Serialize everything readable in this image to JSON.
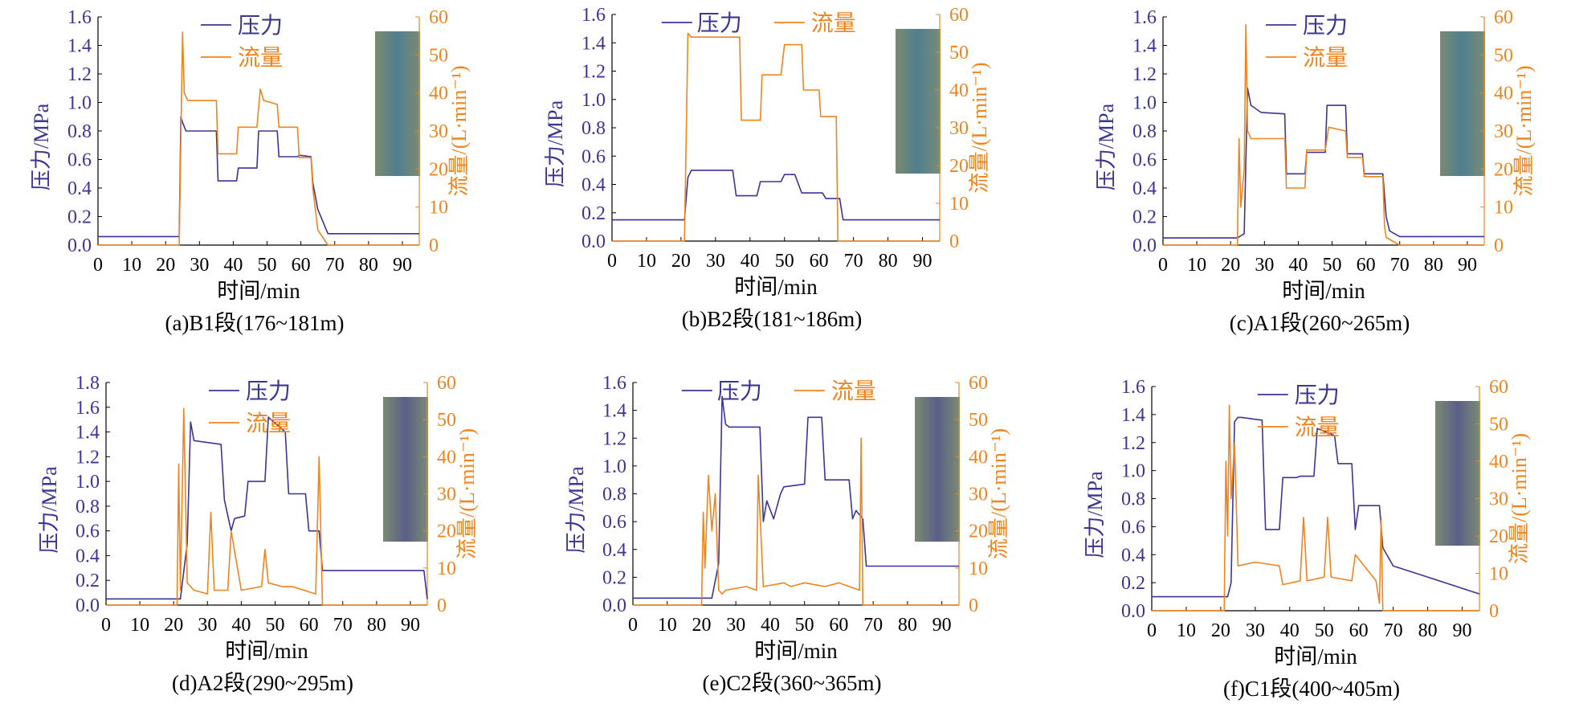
{
  "colors": {
    "pressure": "#3b3596",
    "flow": "#f0841e",
    "axis": "#000000"
  },
  "chart_data": [
    {
      "type": "line",
      "caption": "(a)B1段(176~181m)",
      "xlabel": "时间/min",
      "ylabel": "压力/MPa",
      "y2label": "流量/(L·min⁻¹)",
      "xlim": [
        0,
        95
      ],
      "ylim": [
        0,
        1.6
      ],
      "y2lim": [
        0,
        60
      ],
      "xticks": [
        0,
        10,
        20,
        30,
        40,
        50,
        60,
        70,
        80,
        90
      ],
      "yticks": [
        0.0,
        0.2,
        0.4,
        0.6,
        0.8,
        1.0,
        1.2,
        1.4,
        1.6
      ],
      "y2ticks": [
        0,
        10,
        20,
        30,
        40,
        50,
        60
      ],
      "legend": "top-center",
      "series": [
        {
          "name": "压力",
          "axis": "left",
          "x": [
            0,
            24,
            24.5,
            25,
            26,
            35,
            35.5,
            41,
            41.5,
            47,
            47.5,
            53,
            53.5,
            59,
            59.5,
            63,
            63.5,
            65,
            68,
            95
          ],
          "y": [
            0.06,
            0.06,
            0.9,
            0.86,
            0.8,
            0.8,
            0.45,
            0.45,
            0.54,
            0.54,
            0.8,
            0.8,
            0.62,
            0.62,
            0.63,
            0.62,
            0.44,
            0.25,
            0.08,
            0.08
          ]
        },
        {
          "name": "流量",
          "axis": "right",
          "x": [
            0,
            24,
            25,
            25.5,
            26.5,
            35,
            35.5,
            41,
            41.5,
            47,
            48,
            49,
            53,
            53.5,
            59,
            59.5,
            63,
            63.5,
            65,
            68,
            95
          ],
          "y": [
            0,
            0,
            56,
            40,
            38,
            38,
            24,
            24,
            31,
            31,
            41,
            38,
            37,
            31,
            31,
            23,
            23,
            15,
            4,
            0,
            0
          ]
        }
      ]
    },
    {
      "type": "line",
      "caption": "(b)B2段(181~186m)",
      "xlabel": "时间/min",
      "ylabel": "压力/MPa",
      "y2label": "流量/(L·min⁻¹)",
      "xlim": [
        0,
        95
      ],
      "ylim": [
        0,
        1.6
      ],
      "y2lim": [
        0,
        60
      ],
      "xticks": [
        0,
        10,
        20,
        30,
        40,
        50,
        60,
        70,
        80,
        90
      ],
      "yticks": [
        0.0,
        0.2,
        0.4,
        0.6,
        0.8,
        1.0,
        1.2,
        1.4,
        1.6
      ],
      "y2ticks": [
        0,
        10,
        20,
        30,
        40,
        50,
        60
      ],
      "legend": "top-center",
      "series": [
        {
          "name": "压力",
          "axis": "left",
          "x": [
            0,
            21,
            22,
            23,
            35,
            36,
            42,
            43,
            49,
            50,
            53,
            55,
            61,
            62,
            66,
            67,
            95
          ],
          "y": [
            0.15,
            0.15,
            0.45,
            0.5,
            0.5,
            0.32,
            0.32,
            0.42,
            0.42,
            0.47,
            0.47,
            0.34,
            0.34,
            0.3,
            0.3,
            0.15,
            0.15
          ]
        },
        {
          "name": "流量",
          "axis": "right",
          "x": [
            0,
            21,
            22,
            23,
            37,
            37.5,
            43,
            43.5,
            49,
            50,
            55,
            55.5,
            60,
            60.5,
            65,
            65.5,
            95
          ],
          "y": [
            0,
            0,
            55,
            54,
            54,
            32,
            32,
            44,
            44,
            52,
            52,
            40,
            40,
            33,
            33,
            0,
            0
          ]
        }
      ]
    },
    {
      "type": "line",
      "caption": "(c)A1段(260~265m)",
      "xlabel": "时间/min",
      "ylabel": "压力/MPa",
      "y2label": "流量/(L·min⁻¹)",
      "xlim": [
        0,
        95
      ],
      "ylim": [
        0,
        1.6
      ],
      "y2lim": [
        0,
        60
      ],
      "xticks": [
        0,
        10,
        20,
        30,
        40,
        50,
        60,
        70,
        80,
        90
      ],
      "yticks": [
        0.0,
        0.2,
        0.4,
        0.6,
        0.8,
        1.0,
        1.2,
        1.4,
        1.6
      ],
      "y2ticks": [
        0,
        10,
        20,
        30,
        40,
        50,
        60
      ],
      "legend": "top-center",
      "series": [
        {
          "name": "压力",
          "axis": "left",
          "x": [
            0,
            22,
            24,
            25,
            26,
            29,
            36,
            36.5,
            42,
            42.5,
            48,
            48.5,
            54,
            54.5,
            59,
            59.5,
            65,
            66,
            67,
            70,
            95
          ],
          "y": [
            0.05,
            0.05,
            0.08,
            1.1,
            0.98,
            0.93,
            0.92,
            0.5,
            0.5,
            0.65,
            0.65,
            0.98,
            0.98,
            0.64,
            0.64,
            0.5,
            0.5,
            0.2,
            0.1,
            0.06,
            0.06
          ]
        },
        {
          "name": "流量",
          "axis": "right",
          "x": [
            0,
            22,
            22.5,
            23,
            24,
            24.5,
            25,
            25.5,
            26,
            36,
            36.5,
            42,
            42.5,
            48,
            49,
            54,
            54.5,
            59,
            59.5,
            65,
            65.5,
            66,
            70,
            95
          ],
          "y": [
            0,
            0,
            28,
            10,
            20,
            58,
            30,
            29,
            28,
            28,
            15,
            15,
            25,
            25,
            31,
            30,
            23,
            23,
            18,
            18,
            5,
            2,
            0,
            0
          ]
        }
      ]
    },
    {
      "type": "line",
      "caption": "(d)A2段(290~295m)",
      "xlabel": "时间/min",
      "ylabel": "压力/MPa",
      "y2label": "流量/(L·min⁻¹)",
      "xlim": [
        0,
        95
      ],
      "ylim": [
        0,
        1.8
      ],
      "y2lim": [
        0,
        60
      ],
      "xticks": [
        0,
        10,
        20,
        30,
        40,
        50,
        60,
        70,
        80,
        90
      ],
      "yticks": [
        0.0,
        0.2,
        0.4,
        0.6,
        0.8,
        1.0,
        1.2,
        1.4,
        1.6,
        1.8
      ],
      "y2ticks": [
        0,
        10,
        20,
        30,
        40,
        50,
        60
      ],
      "legend": "top-center",
      "series": [
        {
          "name": "压力",
          "axis": "left",
          "x": [
            0,
            22,
            24,
            25,
            26,
            34,
            35,
            37,
            38,
            41,
            42,
            47,
            48,
            53,
            54,
            59,
            60,
            63,
            64,
            94,
            95
          ],
          "y": [
            0.05,
            0.05,
            0.5,
            1.48,
            1.33,
            1.3,
            0.85,
            0.6,
            0.7,
            0.72,
            1.0,
            1.0,
            1.52,
            1.4,
            0.9,
            0.9,
            0.6,
            0.6,
            0.28,
            0.28,
            0.05
          ]
        },
        {
          "name": "流量",
          "axis": "right",
          "x": [
            0,
            21,
            21.5,
            22,
            23,
            24,
            26,
            30,
            31,
            32,
            36,
            37,
            40,
            46,
            47,
            48,
            52,
            55,
            62,
            63,
            64,
            95
          ],
          "y": [
            0,
            0,
            38,
            4,
            53,
            6,
            4,
            3,
            25,
            4,
            4,
            20,
            4,
            5,
            15,
            6,
            5,
            5,
            3,
            40,
            0,
            0
          ]
        }
      ]
    },
    {
      "type": "line",
      "caption": "(e)C2段(360~365m)",
      "xlabel": "时间/min",
      "ylabel": "压力/MPa",
      "y2label": "流量/(L·min⁻¹)",
      "xlim": [
        0,
        95
      ],
      "ylim": [
        0,
        1.6
      ],
      "y2lim": [
        0,
        60
      ],
      "xticks": [
        0,
        10,
        20,
        30,
        40,
        50,
        60,
        70,
        80,
        90
      ],
      "yticks": [
        0.0,
        0.2,
        0.4,
        0.6,
        0.8,
        1.0,
        1.2,
        1.4,
        1.6
      ],
      "y2ticks": [
        0,
        10,
        20,
        30,
        40,
        50,
        60
      ],
      "legend": "top-center",
      "series": [
        {
          "name": "压力",
          "axis": "left",
          "x": [
            0,
            23,
            25,
            26,
            27,
            28,
            37,
            38,
            39,
            41,
            43,
            44,
            50,
            51,
            55,
            56,
            63,
            64,
            65,
            67,
            68,
            95
          ],
          "y": [
            0.05,
            0.05,
            0.3,
            1.5,
            1.3,
            1.28,
            1.28,
            0.6,
            0.75,
            0.62,
            0.8,
            0.85,
            0.87,
            1.35,
            1.35,
            0.9,
            0.9,
            0.62,
            0.68,
            0.62,
            0.28,
            0.28
          ]
        },
        {
          "name": "流量",
          "axis": "right",
          "x": [
            0,
            20,
            20.5,
            21,
            22,
            23,
            24,
            25,
            26,
            27,
            33,
            36,
            36.5,
            38,
            44,
            46,
            50,
            56,
            60,
            66,
            66.5,
            67,
            95
          ],
          "y": [
            0,
            0,
            25,
            10,
            35,
            20,
            30,
            4,
            3,
            4,
            5,
            4,
            35,
            5,
            6,
            5,
            6,
            5,
            6,
            4,
            45,
            0,
            0
          ]
        }
      ]
    },
    {
      "type": "line",
      "caption": "(f)C1段(400~405m)",
      "xlabel": "时间/min",
      "ylabel": "压力/MPa",
      "y2label": "流量/(L·min⁻¹)",
      "xlim": [
        0,
        95
      ],
      "ylim": [
        0,
        1.6
      ],
      "y2lim": [
        0,
        60
      ],
      "xticks": [
        0,
        10,
        20,
        30,
        40,
        50,
        60,
        70,
        80,
        90
      ],
      "yticks": [
        0.0,
        0.2,
        0.4,
        0.6,
        0.8,
        1.0,
        1.2,
        1.4,
        1.6
      ],
      "y2ticks": [
        0,
        10,
        20,
        30,
        40,
        50,
        60
      ],
      "legend": "top-center",
      "series": [
        {
          "name": "压力",
          "axis": "left",
          "x": [
            0,
            22,
            23,
            24,
            25,
            26,
            32,
            33,
            37,
            38,
            42,
            43,
            47,
            48,
            53,
            54,
            58,
            59,
            60,
            66,
            67,
            70,
            80,
            95
          ],
          "y": [
            0.1,
            0.1,
            0.2,
            1.35,
            1.38,
            1.38,
            1.36,
            0.58,
            0.58,
            0.95,
            0.95,
            0.96,
            0.96,
            1.3,
            1.25,
            1.05,
            1.05,
            0.58,
            0.75,
            0.75,
            0.45,
            0.32,
            0.24,
            0.12
          ]
        },
        {
          "name": "流量",
          "axis": "right",
          "x": [
            0,
            21,
            21.5,
            22,
            22.5,
            23,
            24,
            25,
            30,
            37,
            38,
            43,
            44,
            45,
            50,
            51,
            52,
            58,
            59,
            65,
            66,
            66.5,
            67,
            95
          ],
          "y": [
            0,
            0,
            40,
            20,
            55,
            30,
            45,
            12,
            13,
            12,
            7,
            8,
            25,
            8,
            9,
            25,
            9,
            8,
            15,
            8,
            2,
            25,
            0,
            0
          ]
        }
      ]
    }
  ]
}
